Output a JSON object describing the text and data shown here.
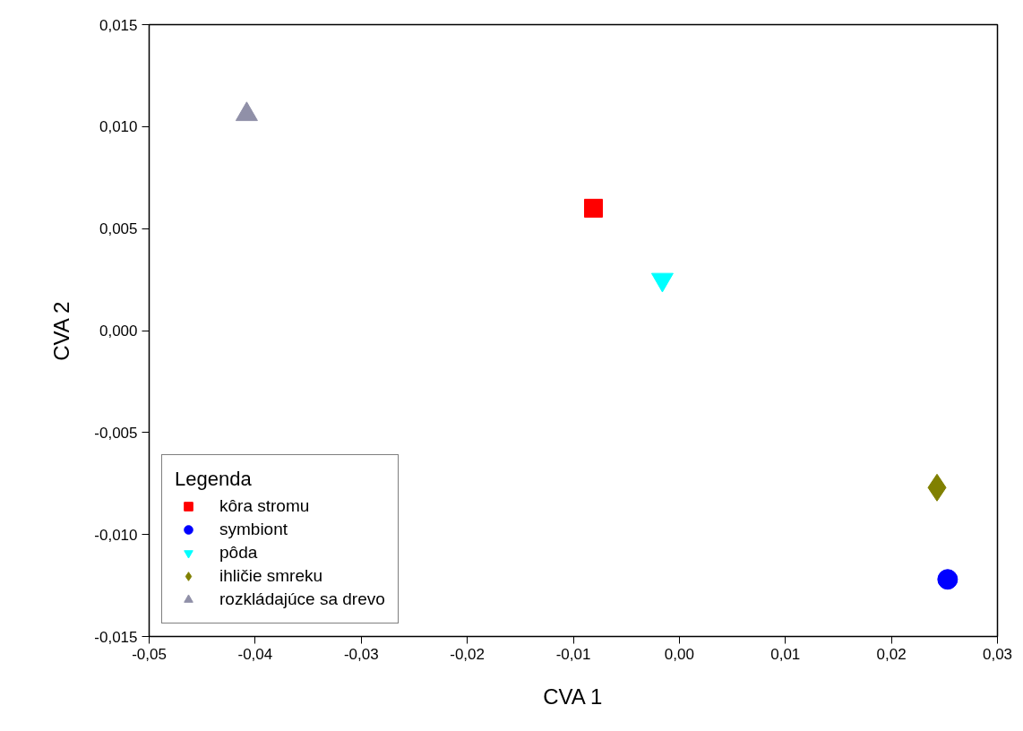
{
  "chart_data": {
    "type": "scatter",
    "xlabel": "CVA 1",
    "ylabel": "CVA 2",
    "legend_title": "Legenda",
    "legend": "bottom left",
    "grid": false,
    "xlim": [
      -0.05,
      0.03
    ],
    "ylim": [
      -0.015,
      0.015
    ],
    "xticks": [
      {
        "value": -0.05,
        "label": "-0,05"
      },
      {
        "value": -0.04,
        "label": "-0,04"
      },
      {
        "value": -0.03,
        "label": "-0,03"
      },
      {
        "value": -0.02,
        "label": "-0,02"
      },
      {
        "value": -0.01,
        "label": "-0,01"
      },
      {
        "value": 0,
        "label": "0,00"
      },
      {
        "value": 0.01,
        "label": "0,01"
      },
      {
        "value": 0.02,
        "label": "0,02"
      },
      {
        "value": 0.03,
        "label": "0,03"
      }
    ],
    "yticks": [
      {
        "value": -0.015,
        "label": "-0,015"
      },
      {
        "value": -0.01,
        "label": "-0,010"
      },
      {
        "value": -0.005,
        "label": "-0,005"
      },
      {
        "value": 0,
        "label": "0,000"
      },
      {
        "value": 0.005,
        "label": "0,005"
      },
      {
        "value": 0.01,
        "label": "0,010"
      },
      {
        "value": 0.015,
        "label": "0,015"
      }
    ],
    "series": [
      {
        "name": "kôra stromu",
        "color": "#ff0000",
        "marker": "square",
        "x": [
          -0.0081
        ],
        "values": [
          0.006
        ]
      },
      {
        "name": "symbiont",
        "color": "#0000ff",
        "marker": "circle",
        "x": [
          0.0253
        ],
        "values": [
          -0.0122
        ]
      },
      {
        "name": "pôda",
        "color": "#00ffff",
        "marker": "triangle_down",
        "x": [
          -0.0016
        ],
        "values": [
          0.0025
        ]
      },
      {
        "name": "ihličie smreku",
        "color": "#808000",
        "marker": "diamond",
        "x": [
          0.0243
        ],
        "values": [
          -0.0077
        ]
      },
      {
        "name": "rozkládajúce sa drevo",
        "color": "#9090a8",
        "marker": "triangle",
        "x": [
          -0.0408
        ],
        "values": [
          0.0106
        ]
      }
    ]
  }
}
